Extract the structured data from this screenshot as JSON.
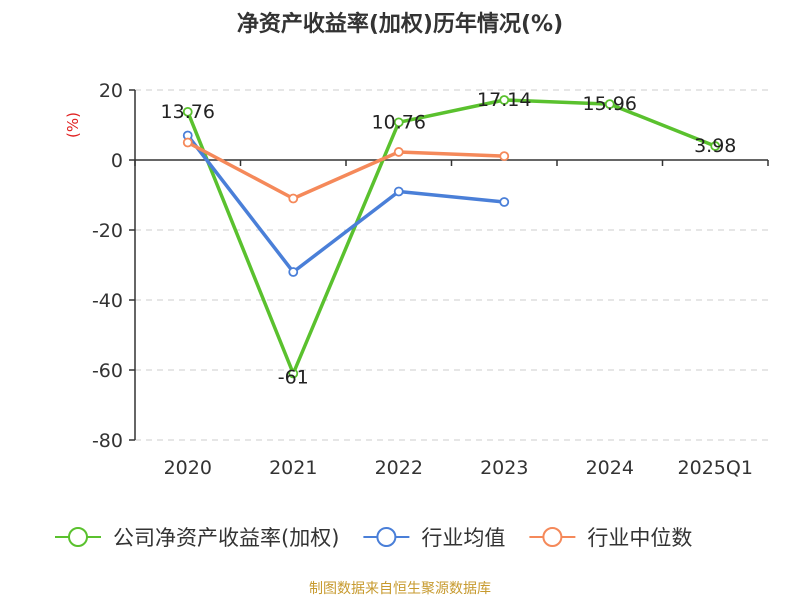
{
  "chart_data": {
    "type": "line",
    "title": "净资产收益率(加权)历年情况(%)",
    "ylabel": "(%)",
    "categories": [
      "2020",
      "2021",
      "2022",
      "2023",
      "2024",
      "2025Q1"
    ],
    "ylim": [
      -80,
      20
    ],
    "yticks": [
      20,
      0,
      -20,
      -40,
      -60,
      -80
    ],
    "grid": true,
    "legend_position": "bottom",
    "series": [
      {
        "name": "公司净资产收益率(加权)",
        "color": "#5ac12e",
        "values": [
          13.76,
          -61,
          10.76,
          17.14,
          15.96,
          3.98
        ],
        "labels": [
          "13.76",
          "-61",
          "10.76",
          "17.14",
          "15.96",
          "3.98"
        ]
      },
      {
        "name": "行业均值",
        "color": "#4a7fd8",
        "values": [
          7,
          -32,
          -9,
          -12,
          null,
          null
        ]
      },
      {
        "name": "行业中位数",
        "color": "#f5895a",
        "values": [
          5,
          -11,
          2.3,
          1.1,
          null,
          null
        ]
      }
    ]
  },
  "source": "制图数据来自恒生聚源数据库",
  "colors": {
    "unit": "#e02020",
    "source": "#c79a2e",
    "axis": "#333333",
    "grid": "#cccccc"
  }
}
